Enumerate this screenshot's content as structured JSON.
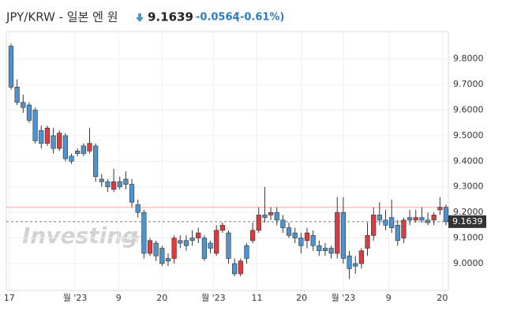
{
  "header": {
    "title": "JPY/KRW - 일본 엔 원",
    "price": "9.1639",
    "change": "-0.0564",
    "change_percent": "(-0.61%)"
  },
  "chart_data": {
    "type": "candlestick",
    "watermark": {
      "brand": "Investing",
      "suffix": ".com"
    },
    "open": [
      9.85,
      9.69,
      9.63,
      9.62,
      9.6,
      9.52,
      9.47,
      9.5,
      9.45,
      9.5,
      9.42,
      9.44,
      9.46,
      9.44,
      9.46,
      9.33,
      9.32,
      9.29,
      9.32,
      9.33,
      9.31,
      9.23,
      9.2,
      9.04,
      9.08,
      9.06,
      9.02,
      9.02,
      9.09,
      9.09,
      9.1,
      9.1,
      9.1,
      9.08,
      9.04,
      9.13,
      9.12,
      9.0,
      8.96,
      9.07,
      9.09,
      9.13,
      9.19,
      9.19,
      9.2,
      9.17,
      9.14,
      9.12,
      9.1,
      9.09,
      9.11,
      9.07,
      9.06,
      9.06,
      9.04,
      9.2,
      9.03,
      9.0,
      9.0,
      9.06,
      9.11,
      9.19,
      9.17,
      9.18,
      9.15,
      9.1,
      9.18,
      9.17,
      9.18,
      9.17,
      9.17,
      9.21,
      9.22
    ],
    "high": [
      9.86,
      9.72,
      9.66,
      9.63,
      9.61,
      9.54,
      9.54,
      9.53,
      9.52,
      9.51,
      9.43,
      9.45,
      9.47,
      9.53,
      9.47,
      9.35,
      9.33,
      9.37,
      9.34,
      9.36,
      9.33,
      9.25,
      9.21,
      9.1,
      9.09,
      9.07,
      9.04,
      9.11,
      9.11,
      9.11,
      9.13,
      9.14,
      9.11,
      9.09,
      9.15,
      9.16,
      9.13,
      9.02,
      9.02,
      9.08,
      9.16,
      9.22,
      9.3,
      9.22,
      9.22,
      9.19,
      9.16,
      9.14,
      9.12,
      9.14,
      9.13,
      9.09,
      9.08,
      9.07,
      9.26,
      9.26,
      9.05,
      9.03,
      9.06,
      9.16,
      9.22,
      9.24,
      9.21,
      9.25,
      9.17,
      9.18,
      9.21,
      9.21,
      9.22,
      9.2,
      9.2,
      9.26,
      9.23
    ],
    "low": [
      9.68,
      9.62,
      9.59,
      9.55,
      9.47,
      9.45,
      9.46,
      9.43,
      9.44,
      9.4,
      9.39,
      9.42,
      9.42,
      9.43,
      9.32,
      9.3,
      9.28,
      9.28,
      9.29,
      9.29,
      9.22,
      9.18,
      9.02,
      9.03,
      9.01,
      8.99,
      8.99,
      9.0,
      9.06,
      9.05,
      9.07,
      9.08,
      9.01,
      9.04,
      9.03,
      9.12,
      9.0,
      8.95,
      8.95,
      9.0,
      9.08,
      9.12,
      9.16,
      9.17,
      9.15,
      9.12,
      9.1,
      9.08,
      9.04,
      9.06,
      9.05,
      9.03,
      9.03,
      9.02,
      9.02,
      9.0,
      8.94,
      8.96,
      8.98,
      9.03,
      9.09,
      9.15,
      9.13,
      9.12,
      9.07,
      9.08,
      9.15,
      9.16,
      9.16,
      9.15,
      9.15,
      9.19,
      9.15
    ],
    "close": [
      9.69,
      9.63,
      9.61,
      9.56,
      9.48,
      9.47,
      9.53,
      9.45,
      9.51,
      9.41,
      9.4,
      9.43,
      9.43,
      9.47,
      9.34,
      9.32,
      9.3,
      9.32,
      9.3,
      9.31,
      9.24,
      9.2,
      9.04,
      9.09,
      9.03,
      9.0,
      9.01,
      9.1,
      9.08,
      9.07,
      9.09,
      9.12,
      9.02,
      9.06,
      9.13,
      9.15,
      9.02,
      8.96,
      9.01,
      9.02,
      9.13,
      9.19,
      9.18,
      9.2,
      9.17,
      9.14,
      9.11,
      9.1,
      9.07,
      9.12,
      9.07,
      9.05,
      9.05,
      9.04,
      9.2,
      9.02,
      8.98,
      8.99,
      9.05,
      9.11,
      9.19,
      9.17,
      9.15,
      9.14,
      9.09,
      9.17,
      9.17,
      9.18,
      9.17,
      9.16,
      9.19,
      9.22,
      9.1639
    ],
    "up_color": "#e0393e",
    "down_color": "#4d93cf",
    "last_price": 9.1639,
    "previous_close": 9.2203,
    "previous_close_color": "#f5b8a6",
    "ylim": [
      8.895,
      9.907
    ],
    "yticks": [
      {
        "value": 9.0,
        "label": "9.0000"
      },
      {
        "value": 9.1,
        "label": "9.1000"
      },
      {
        "value": 9.2,
        "label": "9.2000"
      },
      {
        "value": 9.3,
        "label": "9.3000"
      },
      {
        "value": 9.4,
        "label": "9.4000"
      },
      {
        "value": 9.5,
        "label": "9.5000"
      },
      {
        "value": 9.6,
        "label": "9.6000"
      },
      {
        "value": 9.7,
        "label": "9.7000"
      },
      {
        "value": 9.8,
        "label": "9.8000"
      }
    ],
    "xticks": [
      {
        "value": -0.3,
        "label": "17"
      },
      {
        "value": 10.6,
        "label": "월 '23"
      },
      {
        "value": 17.8,
        "label": "9"
      },
      {
        "value": 25.0,
        "label": "20"
      },
      {
        "value": 33.5,
        "label": "월 '23"
      },
      {
        "value": 40.7,
        "label": "11"
      },
      {
        "value": 48.1,
        "label": "20"
      },
      {
        "value": 55.0,
        "label": "월 '23"
      },
      {
        "value": 62.5,
        "label": "9"
      },
      {
        "value": 71.4,
        "label": "20"
      }
    ],
    "grid": true
  }
}
